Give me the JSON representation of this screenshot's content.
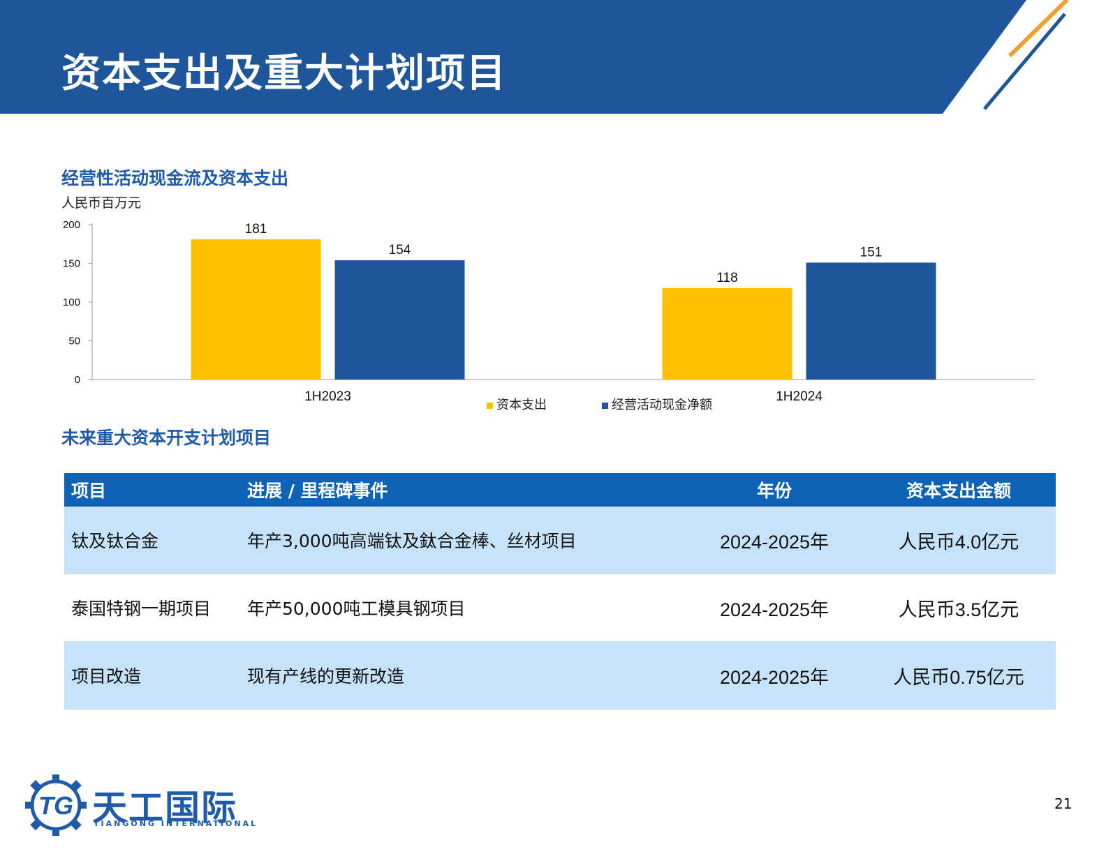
{
  "page": {
    "title": "资本支出及重大计划项目",
    "number": "21"
  },
  "colors": {
    "brand_blue": "#1f5ba6",
    "header_blue": "#1f5699",
    "capex_yellow": "#ffc000",
    "cashflow_blue": "#1f5699",
    "table_header": "#0e63b6",
    "row_shade": "#c7e3fa",
    "stripe_orange": "#f0a030"
  },
  "chart_section": {
    "title": "经营性活动现金流及资本支出",
    "unit": "人民币百万元"
  },
  "chart_data": {
    "type": "bar",
    "categories": [
      "1H2023",
      "1H2024"
    ],
    "series": [
      {
        "name": "资本支出",
        "values": [
          181,
          118
        ],
        "color": "#ffc000"
      },
      {
        "name": "经营活动现金净额",
        "values": [
          154,
          151
        ],
        "color": "#1f5699"
      }
    ],
    "ylim": [
      0,
      200
    ],
    "yticks": [
      0,
      50,
      100,
      150,
      200
    ],
    "ylabel": "人民币百万元",
    "legend": "bottom-center",
    "grid": false
  },
  "table_section": {
    "title": "未来重大资本开支计划项目",
    "headers": [
      "项目",
      "进展 / 里程碑事件",
      "年份",
      "资本支出金额"
    ],
    "rows": [
      {
        "project": "钛及钛合金",
        "milestone": "年产3,000吨高端钛及鈦合金棒、丝材项目",
        "year": "2024-2025年",
        "amount": "人民币4.0亿元"
      },
      {
        "project": "泰国特钢一期项目",
        "milestone": "年产50,000吨工模具钢项目",
        "year": "2024-2025年",
        "amount": "人民币3.5亿元"
      },
      {
        "project": "项目改造",
        "milestone": "现有产线的更新改造",
        "year": "2024-2025年",
        "amount": "人民币0.75亿元"
      }
    ]
  },
  "logo": {
    "icon": "gear-logo-icon",
    "mark": "TG",
    "cn": "天工国际",
    "en": "TIANGONG INTERNATIONAL"
  }
}
